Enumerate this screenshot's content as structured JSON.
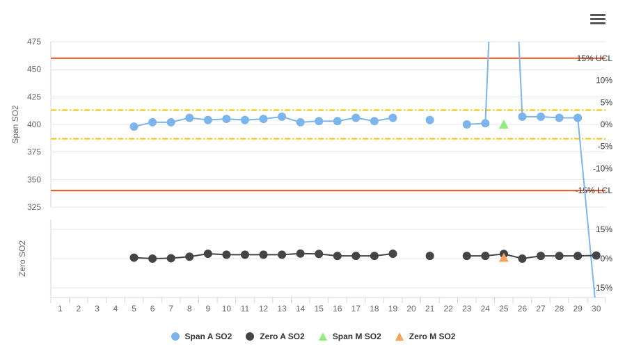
{
  "chart_data": {
    "type": "line",
    "categories": [
      "1",
      "2",
      "3",
      "4",
      "5",
      "6",
      "7",
      "8",
      "9",
      "10",
      "11",
      "12",
      "13",
      "14",
      "15",
      "16",
      "17",
      "18",
      "19",
      "20",
      "21",
      "22",
      "23",
      "24",
      "25",
      "26",
      "27",
      "28",
      "29",
      "30"
    ],
    "top_panel": {
      "ylabel": "Span SO2",
      "ylim": [
        325,
        475
      ],
      "yticks": [
        325,
        350,
        375,
        400,
        425,
        450,
        475
      ],
      "right_ticks": [
        {
          "value": 460,
          "label": "15% UCL"
        },
        {
          "value": 440,
          "label": "10%"
        },
        {
          "value": 420,
          "label": "5%"
        },
        {
          "value": 400,
          "label": "0%"
        },
        {
          "value": 380,
          "label": "-5%"
        },
        {
          "value": 360,
          "label": "-10%"
        },
        {
          "value": 340,
          "label": "-15% LCL"
        }
      ],
      "control_lines": [
        {
          "value": 460,
          "style": "solid",
          "color": "#e0501d"
        },
        {
          "value": 340,
          "style": "solid",
          "color": "#e0501d"
        },
        {
          "value": 413,
          "style": "dashdot",
          "color": "#f5c200"
        },
        {
          "value": 387,
          "style": "dashdot",
          "color": "#f5c200"
        }
      ]
    },
    "bottom_panel": {
      "ylabel": "Zero SO2",
      "ylim": [
        -20,
        20
      ],
      "right_ticks": [
        {
          "value": 15,
          "label": "15%"
        },
        {
          "value": 0,
          "label": "0%"
        },
        {
          "value": -15,
          "label": "-15%"
        }
      ]
    },
    "series": [
      {
        "name": "Span A SO2",
        "panel": "top",
        "color": "#7cb5ec",
        "marker": "circle",
        "values": [
          null,
          null,
          null,
          null,
          398,
          402,
          402,
          406,
          404,
          405,
          404,
          405,
          407,
          402,
          403,
          403,
          406,
          403,
          406,
          null,
          404,
          null,
          400,
          401,
          null,
          407,
          407,
          406,
          406,
          null
        ]
      },
      {
        "name": "Zero A SO2",
        "panel": "bottom",
        "color": "#434348",
        "marker": "circle",
        "values": [
          null,
          null,
          null,
          null,
          0.5,
          0,
          0.2,
          1,
          2.5,
          2,
          2,
          2,
          2,
          2.6,
          2.4,
          1.4,
          1.4,
          1.4,
          2.5,
          null,
          1.4,
          null,
          1.4,
          1.4,
          2.4,
          0,
          1.4,
          1.4,
          1.4,
          1.6
        ]
      },
      {
        "name": "Span M SO2",
        "panel": "top",
        "color": "#90ed7d",
        "marker": "triangle",
        "values": [
          null,
          null,
          null,
          null,
          null,
          null,
          null,
          null,
          null,
          null,
          null,
          null,
          null,
          null,
          null,
          null,
          null,
          null,
          null,
          null,
          null,
          null,
          null,
          null,
          400,
          null,
          null,
          null,
          null,
          null
        ]
      },
      {
        "name": "Zero M SO2",
        "panel": "bottom",
        "color": "#f7a35c",
        "marker": "triangle",
        "values": [
          null,
          null,
          null,
          null,
          null,
          null,
          null,
          null,
          null,
          null,
          null,
          null,
          null,
          null,
          null,
          null,
          null,
          null,
          null,
          null,
          null,
          null,
          null,
          null,
          0.5,
          null,
          null,
          null,
          null,
          null
        ]
      }
    ],
    "legend_position": "bottom-center",
    "grid": true
  },
  "ui": {
    "menu_icon": "hamburger-menu-icon"
  }
}
